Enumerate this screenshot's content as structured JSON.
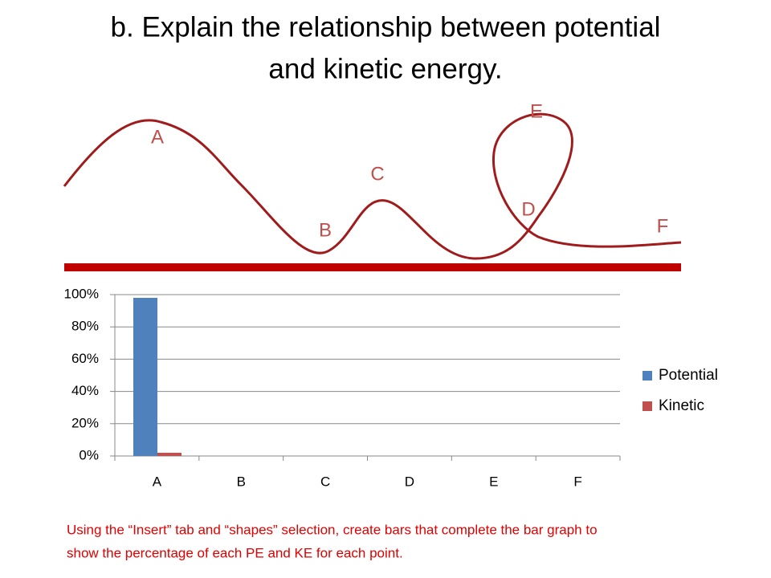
{
  "slide": {
    "title_line1": "b. Explain the relationship between potential",
    "title_line2": "and kinetic energy.",
    "note_line1": "Using the “Insert” tab and “shapes” selection, create bars that complete the bar graph to",
    "note_line2": "show the percentage of each PE and KE for each point."
  },
  "diagram": {
    "labels": [
      "A",
      "B",
      "C",
      "D",
      "E",
      "F"
    ]
  },
  "chart_data": {
    "type": "bar",
    "categories": [
      "A",
      "B",
      "C",
      "D",
      "E",
      "F"
    ],
    "series": [
      {
        "name": "Potential",
        "color": "#4f81bd",
        "values": [
          98,
          null,
          null,
          null,
          null,
          null
        ]
      },
      {
        "name": "Kinetic",
        "color": "#c0504d",
        "values": [
          2,
          null,
          null,
          null,
          null,
          null
        ]
      }
    ],
    "ylim": [
      0,
      100
    ],
    "yticks": [
      {
        "value": 0,
        "label": "0%"
      },
      {
        "value": 20,
        "label": "20%"
      },
      {
        "value": 40,
        "label": "40%"
      },
      {
        "value": 60,
        "label": "60%"
      },
      {
        "value": 80,
        "label": "80%"
      },
      {
        "value": 100,
        "label": "100%"
      }
    ],
    "grid": true,
    "legend": "right"
  }
}
